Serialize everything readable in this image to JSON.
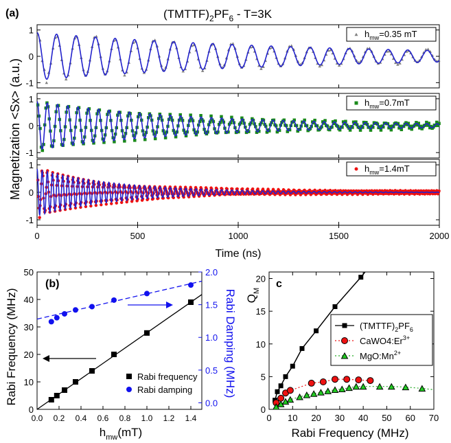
{
  "figure": {
    "title_main": "(TMTTF)",
    "title_sub": "2",
    "title_main2": "PF",
    "title_sub2": "6",
    "title_rest": " - T=3K"
  },
  "chart_data": [
    {
      "panel": "(a)",
      "type": "line",
      "subplots": [
        {
          "legend_prefix": "h",
          "legend_sub": "mw",
          "legend_rest": "=0.35 mT",
          "marker": "triangle",
          "data_color": "#808080",
          "fit_color": "#2222cc",
          "period_ns": 97,
          "tau_ns": 1400,
          "amp": 0.9,
          "legend": "top-right"
        },
        {
          "legend_prefix": "h",
          "legend_sub": "mw",
          "legend_rest": "=0.7mT",
          "marker": "square",
          "data_color": "#1a8a1a",
          "fit_color": "#2222cc",
          "period_ns": 51,
          "tau_ns": 800,
          "amp": 0.9,
          "legend": "top-right"
        },
        {
          "legend_prefix": "h",
          "legend_sub": "mw",
          "legend_rest": "=1.4mT",
          "marker": "circle",
          "data_color": "#ee1111",
          "fit_color": "#2222cc",
          "period_ns": 25.5,
          "tau_ns": 420,
          "amp": 0.85,
          "legend": "top-right"
        }
      ],
      "xlabel": "Time (ns)",
      "ylabel": "Magnetization <Sx> (a.u.)",
      "xlim": [
        0,
        2000
      ],
      "ylim": [
        -1.2,
        1.2
      ],
      "x_ticks": [
        "0",
        "500",
        "1000",
        "1500",
        "2000"
      ],
      "y_ticks": [
        "-1",
        "0",
        "1"
      ]
    },
    {
      "panel": "(b)",
      "type": "scatter",
      "xlabel_prefix": "h",
      "xlabel_sub": "mw",
      "xlabel_rest": "(mT)",
      "ylabel_left": "Rabi Frequency (MHz)",
      "ylabel_right": "Rabi Damping (MHz)",
      "xlim": [
        0,
        1.5
      ],
      "ylim_left": [
        0,
        50
      ],
      "ylim_right": [
        -0.1,
        2.0
      ],
      "x_ticks": [
        "0.0",
        "0.2",
        "0.4",
        "0.6",
        "0.8",
        "1.0",
        "1.2",
        "1.4"
      ],
      "y_ticks_left": [
        "0",
        "10",
        "20",
        "30",
        "40",
        "50"
      ],
      "y_ticks_right": [
        "0.0",
        "0.5",
        "1.0",
        "1.5",
        "2.0"
      ],
      "series": [
        {
          "name": "Rabi frequency",
          "marker": "square",
          "color": "#000000",
          "axis": "left",
          "x": [
            0.13,
            0.18,
            0.25,
            0.35,
            0.5,
            0.7,
            1.0,
            1.4
          ],
          "y": [
            3.5,
            5.0,
            7.0,
            10.0,
            14.0,
            20.0,
            27.8,
            39.0
          ],
          "fit": {
            "x": [
              0.0,
              1.5
            ],
            "y": [
              0.0,
              41.8
            ],
            "style": "solid"
          }
        },
        {
          "name": "Rabi damping",
          "marker": "circle",
          "color": "#1111ee",
          "axis": "right",
          "x": [
            0.13,
            0.18,
            0.25,
            0.35,
            0.5,
            0.7,
            1.0,
            1.4
          ],
          "y": [
            1.24,
            1.3,
            1.36,
            1.42,
            1.47,
            1.57,
            1.67,
            1.8
          ],
          "fit": {
            "x": [
              0.0,
              1.5
            ],
            "y": [
              1.28,
              1.86
            ],
            "style": "dashed"
          }
        }
      ],
      "legend": "bottom-right"
    },
    {
      "panel": "c",
      "type": "scatter",
      "xlabel": "Rabi Frequency (MHz)",
      "ylabel_main": "Q",
      "ylabel_sub": "M",
      "xlim": [
        0,
        70
      ],
      "ylim": [
        0,
        21
      ],
      "x_ticks": [
        "0",
        "10",
        "20",
        "30",
        "40",
        "50",
        "60",
        "70"
      ],
      "y_ticks": [
        "0",
        "5",
        "10",
        "15",
        "20"
      ],
      "series": [
        {
          "name_main": "(TMTTF)",
          "name_sub": "2",
          "name_main2": "PF",
          "name_sub2": "6",
          "marker": "square",
          "color": "#000000",
          "line": "solid",
          "x": [
            2.5,
            3.5,
            5.0,
            7.0,
            10.0,
            14.0,
            20.0,
            28.0,
            39.0
          ],
          "y": [
            1.4,
            2.7,
            3.6,
            5.0,
            6.6,
            9.3,
            12.0,
            15.7,
            20.2
          ]
        },
        {
          "name_main": "CaWO4:Er",
          "name_sup": "3+",
          "marker": "circle",
          "color": "#ee1111",
          "line": "dotted",
          "x": [
            3,
            5,
            7,
            9,
            18,
            23,
            28,
            33,
            38,
            43
          ],
          "y": [
            1.0,
            1.7,
            2.5,
            2.9,
            4.0,
            4.2,
            4.6,
            4.6,
            4.5,
            4.4
          ]
        },
        {
          "name_main": "MgO:Mn",
          "name_sup": "2+",
          "marker": "triangle",
          "color": "#22cc22",
          "line": "dotted",
          "x": [
            3,
            5,
            7,
            9,
            13,
            16,
            19,
            22,
            25,
            28,
            31,
            34,
            37,
            40,
            47,
            52,
            58,
            65
          ],
          "y": [
            0.4,
            0.8,
            1.2,
            1.5,
            1.9,
            2.2,
            2.4,
            2.6,
            2.8,
            3.0,
            3.1,
            3.3,
            3.5,
            3.5,
            3.5,
            3.5,
            3.4,
            3.2
          ],
          "fit": "dotted"
        }
      ],
      "legend": "middle-right"
    }
  ]
}
